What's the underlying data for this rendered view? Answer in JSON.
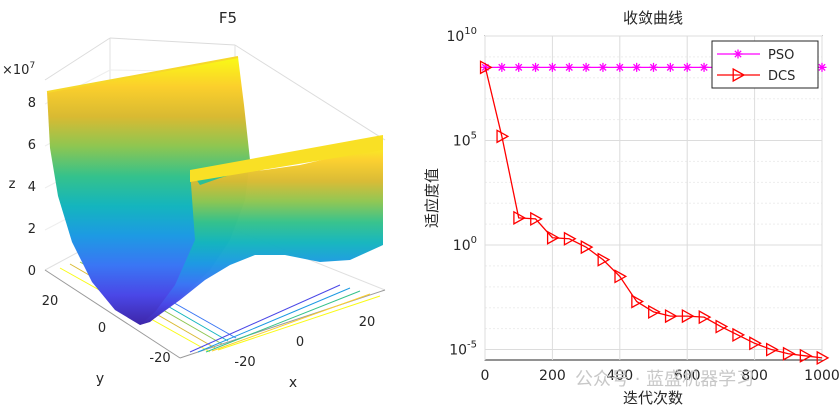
{
  "watermark": "公众号 · 蓝盛机器学习",
  "chart_data": [
    {
      "type": "surface",
      "title": "F5",
      "xlabel": "x",
      "ylabel": "y",
      "zlabel": "z",
      "zscale_label": "×10",
      "zscale_exp": "7",
      "xticks": [
        "-20",
        "0",
        "20"
      ],
      "yticks": [
        "-20",
        "0",
        "20"
      ],
      "zticks": [
        "0",
        "2",
        "4",
        "6",
        "8"
      ],
      "x_range": [
        -30,
        30
      ],
      "y_range": [
        -30,
        30
      ],
      "z_range": [
        0,
        90000000
      ],
      "colormap": [
        "#3e26a8",
        "#4a47e7",
        "#3a76f4",
        "#1d9ae3",
        "#14b5be",
        "#35c28b",
        "#8ec651",
        "#d9ba32",
        "#fbcf2c",
        "#f9fb15"
      ]
    },
    {
      "type": "line",
      "title": "收敛曲线",
      "xlabel": "迭代次数",
      "ylabel": "适应度值",
      "yscale": "log",
      "xlim": [
        0,
        1000
      ],
      "ylim_exp": [
        -5.5,
        10
      ],
      "xticks": [
        "0",
        "200",
        "400",
        "600",
        "800",
        "1000"
      ],
      "yticks": [
        {
          "base": "10",
          "exp": "10"
        },
        {
          "base": "10",
          "exp": "5"
        },
        {
          "base": "10",
          "exp": "0"
        },
        {
          "base": "10",
          "exp": "-5"
        }
      ],
      "grid": true,
      "legend_position": "top-right",
      "series": [
        {
          "name": "PSO",
          "color": "#ff00ff",
          "marker": "asterisk",
          "x": [
            1,
            50,
            100,
            150,
            200,
            250,
            300,
            350,
            400,
            450,
            500,
            550,
            600,
            650,
            700,
            750,
            800,
            850,
            900,
            950,
            1000
          ],
          "log10_y": [
            8.5,
            8.5,
            8.5,
            8.5,
            8.5,
            8.5,
            8.5,
            8.5,
            8.5,
            8.5,
            8.5,
            8.5,
            8.5,
            8.5,
            8.5,
            8.5,
            8.5,
            8.5,
            8.5,
            8.5,
            8.5
          ]
        },
        {
          "name": "DCS",
          "color": "#ff0000",
          "marker": "triangle-right",
          "x": [
            1,
            50,
            100,
            150,
            200,
            250,
            300,
            350,
            400,
            450,
            500,
            550,
            600,
            650,
            700,
            750,
            800,
            850,
            900,
            950,
            1000
          ],
          "log10_y": [
            8.5,
            5.2,
            1.3,
            1.25,
            0.35,
            0.3,
            -0.1,
            -0.7,
            -1.5,
            -2.7,
            -3.2,
            -3.4,
            -3.4,
            -3.45,
            -3.9,
            -4.3,
            -4.7,
            -5.0,
            -5.2,
            -5.3,
            -5.4
          ]
        }
      ]
    }
  ]
}
